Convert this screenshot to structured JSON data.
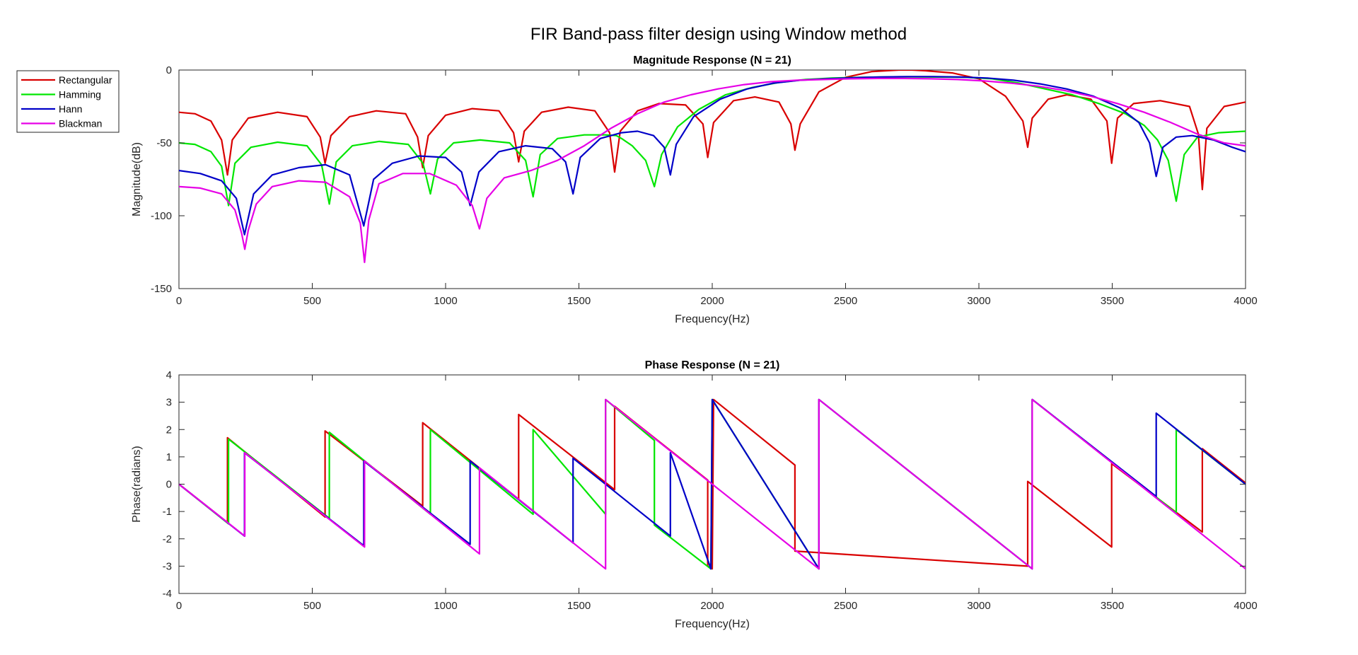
{
  "figure": {
    "title": "FIR Band-pass filter design using Window method"
  },
  "legend": {
    "position": "top-left outside",
    "entries": [
      {
        "name": "Rectangular",
        "color": "#d90000"
      },
      {
        "name": "Hamming",
        "color": "#00e600"
      },
      {
        "name": "Hann",
        "color": "#0000c8"
      },
      {
        "name": "Blackman",
        "color": "#e600e6"
      }
    ]
  },
  "chart_data": [
    {
      "type": "line",
      "title": "Magnitude Response (N = 21)",
      "xlabel": "Frequency(Hz)",
      "ylabel": "Magnitude(dB)",
      "xlim": [
        0,
        4000
      ],
      "ylim": [
        -150,
        0
      ],
      "xticks": [
        "0",
        "500",
        "1000",
        "1500",
        "2000",
        "2500",
        "3000",
        "3500",
        "4000"
      ],
      "yticks": [
        "-150",
        "-100",
        "-50",
        "0"
      ],
      "grid": false,
      "series": [
        {
          "name": "Rectangular",
          "color": "#d90000",
          "x": [
            0,
            60,
            120,
            160,
            182,
            200,
            260,
            370,
            480,
            530,
            548,
            570,
            640,
            740,
            850,
            895,
            914,
            935,
            1000,
            1100,
            1200,
            1255,
            1274,
            1295,
            1360,
            1460,
            1560,
            1615,
            1634,
            1655,
            1720,
            1800,
            1900,
            1965,
            1983,
            2005,
            2080,
            2160,
            2250,
            2295,
            2310,
            2330,
            2400,
            2500,
            2600,
            2700,
            2750,
            2800,
            2900,
            3000,
            3100,
            3165,
            3183,
            3200,
            3260,
            3330,
            3420,
            3480,
            3498,
            3520,
            3580,
            3680,
            3790,
            3823,
            3838,
            3855,
            3920,
            4000
          ],
          "y": [
            -29,
            -30,
            -35,
            -48,
            -72,
            -48,
            -33,
            -29,
            -32,
            -46,
            -64,
            -45,
            -32,
            -28,
            -30,
            -46,
            -67,
            -45,
            -31,
            -26.5,
            -28,
            -43,
            -63,
            -42,
            -29,
            -25.5,
            -28,
            -43,
            -70,
            -42,
            -28,
            -23,
            -24,
            -37,
            -60,
            -36,
            -21,
            -18.5,
            -22,
            -37,
            -55,
            -37,
            -15,
            -5,
            -1,
            0,
            0,
            -0.5,
            -2,
            -6,
            -18,
            -35,
            -53,
            -33,
            -20,
            -17,
            -20,
            -35,
            -64,
            -33,
            -23,
            -21,
            -25,
            -44,
            -82,
            -40,
            -25,
            -22
          ]
        },
        {
          "name": "Hamming",
          "color": "#00e600",
          "x": [
            0,
            60,
            120,
            160,
            186,
            210,
            270,
            370,
            480,
            535,
            564,
            590,
            650,
            750,
            860,
            915,
            943,
            970,
            1030,
            1130,
            1240,
            1300,
            1328,
            1355,
            1420,
            1520,
            1600,
            1640,
            1660,
            1700,
            1750,
            1783,
            1810,
            1870,
            1950,
            2050,
            2150,
            2250,
            2350,
            2450,
            2550,
            2650,
            2750,
            2850,
            2950,
            3050,
            3150,
            3250,
            3350,
            3450,
            3550,
            3620,
            3670,
            3710,
            3740,
            3770,
            3820,
            3900,
            4000
          ],
          "y": [
            -50,
            -51,
            -56,
            -66,
            -93,
            -64,
            -53,
            -49.5,
            -52,
            -65,
            -92,
            -63,
            -52,
            -49,
            -51,
            -64,
            -85,
            -61,
            -50,
            -48,
            -50,
            -62,
            -87,
            -58,
            -47,
            -44.5,
            -44.5,
            -45,
            -47,
            -52,
            -62,
            -80,
            -58,
            -39,
            -27,
            -17,
            -12,
            -8.5,
            -6.5,
            -5.5,
            -5,
            -4.8,
            -4.7,
            -4.8,
            -5,
            -6,
            -9,
            -13,
            -17,
            -23,
            -30,
            -38,
            -48,
            -62,
            -90,
            -58,
            -46,
            -43,
            -42
          ]
        },
        {
          "name": "Hann",
          "color": "#0000c8",
          "x": [
            0,
            80,
            160,
            215,
            246,
            280,
            350,
            450,
            550,
            640,
            693,
            730,
            800,
            900,
            1000,
            1060,
            1092,
            1125,
            1200,
            1300,
            1400,
            1450,
            1478,
            1505,
            1580,
            1660,
            1720,
            1780,
            1820,
            1843,
            1865,
            1930,
            2030,
            2130,
            2230,
            2330,
            2430,
            2530,
            2630,
            2730,
            2830,
            2930,
            3030,
            3130,
            3230,
            3330,
            3430,
            3530,
            3600,
            3640,
            3665,
            3690,
            3740,
            3800,
            3880,
            3950,
            4000
          ],
          "y": [
            -69,
            -71,
            -76,
            -88,
            -113,
            -85,
            -72,
            -67,
            -65,
            -72,
            -107,
            -75,
            -64,
            -59,
            -60,
            -70,
            -93,
            -70,
            -56,
            -52,
            -54,
            -63,
            -85,
            -60,
            -47,
            -43,
            -42,
            -45,
            -53,
            -72,
            -51,
            -32,
            -20,
            -13,
            -9,
            -7,
            -6,
            -5.3,
            -4.8,
            -4.5,
            -4.5,
            -4.8,
            -5.5,
            -7,
            -9.5,
            -13,
            -18,
            -26,
            -36,
            -50,
            -73,
            -53,
            -46,
            -45,
            -48,
            -53,
            -56
          ]
        },
        {
          "name": "Blackman",
          "color": "#e600e6",
          "x": [
            0,
            80,
            160,
            210,
            235,
            247,
            260,
            290,
            350,
            450,
            550,
            640,
            680,
            696,
            712,
            750,
            840,
            940,
            1040,
            1100,
            1127,
            1155,
            1220,
            1320,
            1420,
            1520,
            1620,
            1720,
            1820,
            1920,
            2020,
            2120,
            2220,
            2320,
            2420,
            2520,
            2620,
            2720,
            2820,
            2920,
            3020,
            3120,
            3220,
            3320,
            3420,
            3520,
            3620,
            3720,
            3820,
            3920,
            4000
          ],
          "y": [
            -80,
            -81,
            -85,
            -96,
            -112,
            -123,
            -110,
            -92,
            -80,
            -76,
            -77,
            -87,
            -105,
            -132,
            -103,
            -78,
            -71,
            -71,
            -79,
            -93,
            -109,
            -88,
            -74,
            -69,
            -62,
            -52,
            -40,
            -30,
            -22,
            -17,
            -13,
            -10,
            -8,
            -7,
            -6.5,
            -6,
            -5.8,
            -5.8,
            -6,
            -6.5,
            -7.5,
            -9,
            -11,
            -14,
            -18,
            -23,
            -29,
            -36,
            -44,
            -50,
            -52
          ]
        }
      ]
    },
    {
      "type": "line",
      "title": "Phase Response (N = 21)",
      "xlabel": "Frequency(Hz)",
      "ylabel": "Phase(radians)",
      "xlim": [
        0,
        4000
      ],
      "ylim": [
        -4,
        4
      ],
      "xticks": [
        "0",
        "500",
        "1000",
        "1500",
        "2000",
        "2500",
        "3000",
        "3500",
        "4000"
      ],
      "yticks": [
        "-4",
        "-3",
        "-2",
        "-1",
        "0",
        "1",
        "2",
        "3",
        "4"
      ],
      "grid": false,
      "series": [
        {
          "name": "Rectangular",
          "color": "#d90000",
          "x": [
            0,
            182,
            182,
            548,
            548,
            914,
            914,
            1274,
            1274,
            1634,
            1634,
            1983,
            1983,
            2000,
            2005,
            2310,
            2310,
            3183,
            3183,
            3498,
            3498,
            3838,
            3838,
            4000
          ],
          "y": [
            0,
            -1.4,
            1.7,
            -1.2,
            1.95,
            -0.8,
            2.25,
            -0.55,
            2.55,
            -0.2,
            2.85,
            0.15,
            -3.0,
            -3.1,
            3.1,
            0.7,
            -2.45,
            -3.0,
            0.1,
            -2.3,
            0.75,
            -1.75,
            1.3,
            0.05
          ]
        },
        {
          "name": "Hamming",
          "color": "#00e600",
          "x": [
            0,
            186,
            186,
            564,
            564,
            943,
            943,
            1328,
            1328,
            1600,
            1600,
            1783,
            1783,
            1995,
            2000,
            2400,
            2400,
            3200,
            3200,
            3740,
            3740,
            4000
          ],
          "y": [
            0,
            -1.45,
            1.65,
            -1.25,
            1.9,
            -1.1,
            2.0,
            -1.1,
            2.0,
            -1.1,
            3.1,
            1.6,
            -1.5,
            -3.1,
            3.1,
            -3.1,
            3.1,
            -3.1,
            3.1,
            -1.05,
            2.0,
            0.0
          ]
        },
        {
          "name": "Hann",
          "color": "#0000c8",
          "x": [
            0,
            246,
            246,
            693,
            693,
            1092,
            1092,
            1478,
            1478,
            1843,
            1843,
            1995,
            2000,
            2400,
            2400,
            3200,
            3200,
            3665,
            3665,
            4000
          ],
          "y": [
            0,
            -1.9,
            1.15,
            -2.25,
            0.85,
            -2.2,
            0.85,
            -2.15,
            0.95,
            -1.9,
            1.15,
            -3.1,
            3.1,
            -3.1,
            3.1,
            -3.1,
            3.1,
            -0.45,
            2.6,
            0.0
          ]
        },
        {
          "name": "Blackman",
          "color": "#e600e6",
          "x": [
            0,
            247,
            247,
            696,
            696,
            1127,
            1127,
            1600,
            1600,
            2400,
            2400,
            3200,
            3200,
            4000
          ],
          "y": [
            0,
            -1.9,
            1.15,
            -2.3,
            0.85,
            -2.55,
            0.6,
            -3.1,
            3.1,
            -3.1,
            3.1,
            -3.1,
            3.1,
            -3.1
          ]
        }
      ]
    }
  ]
}
